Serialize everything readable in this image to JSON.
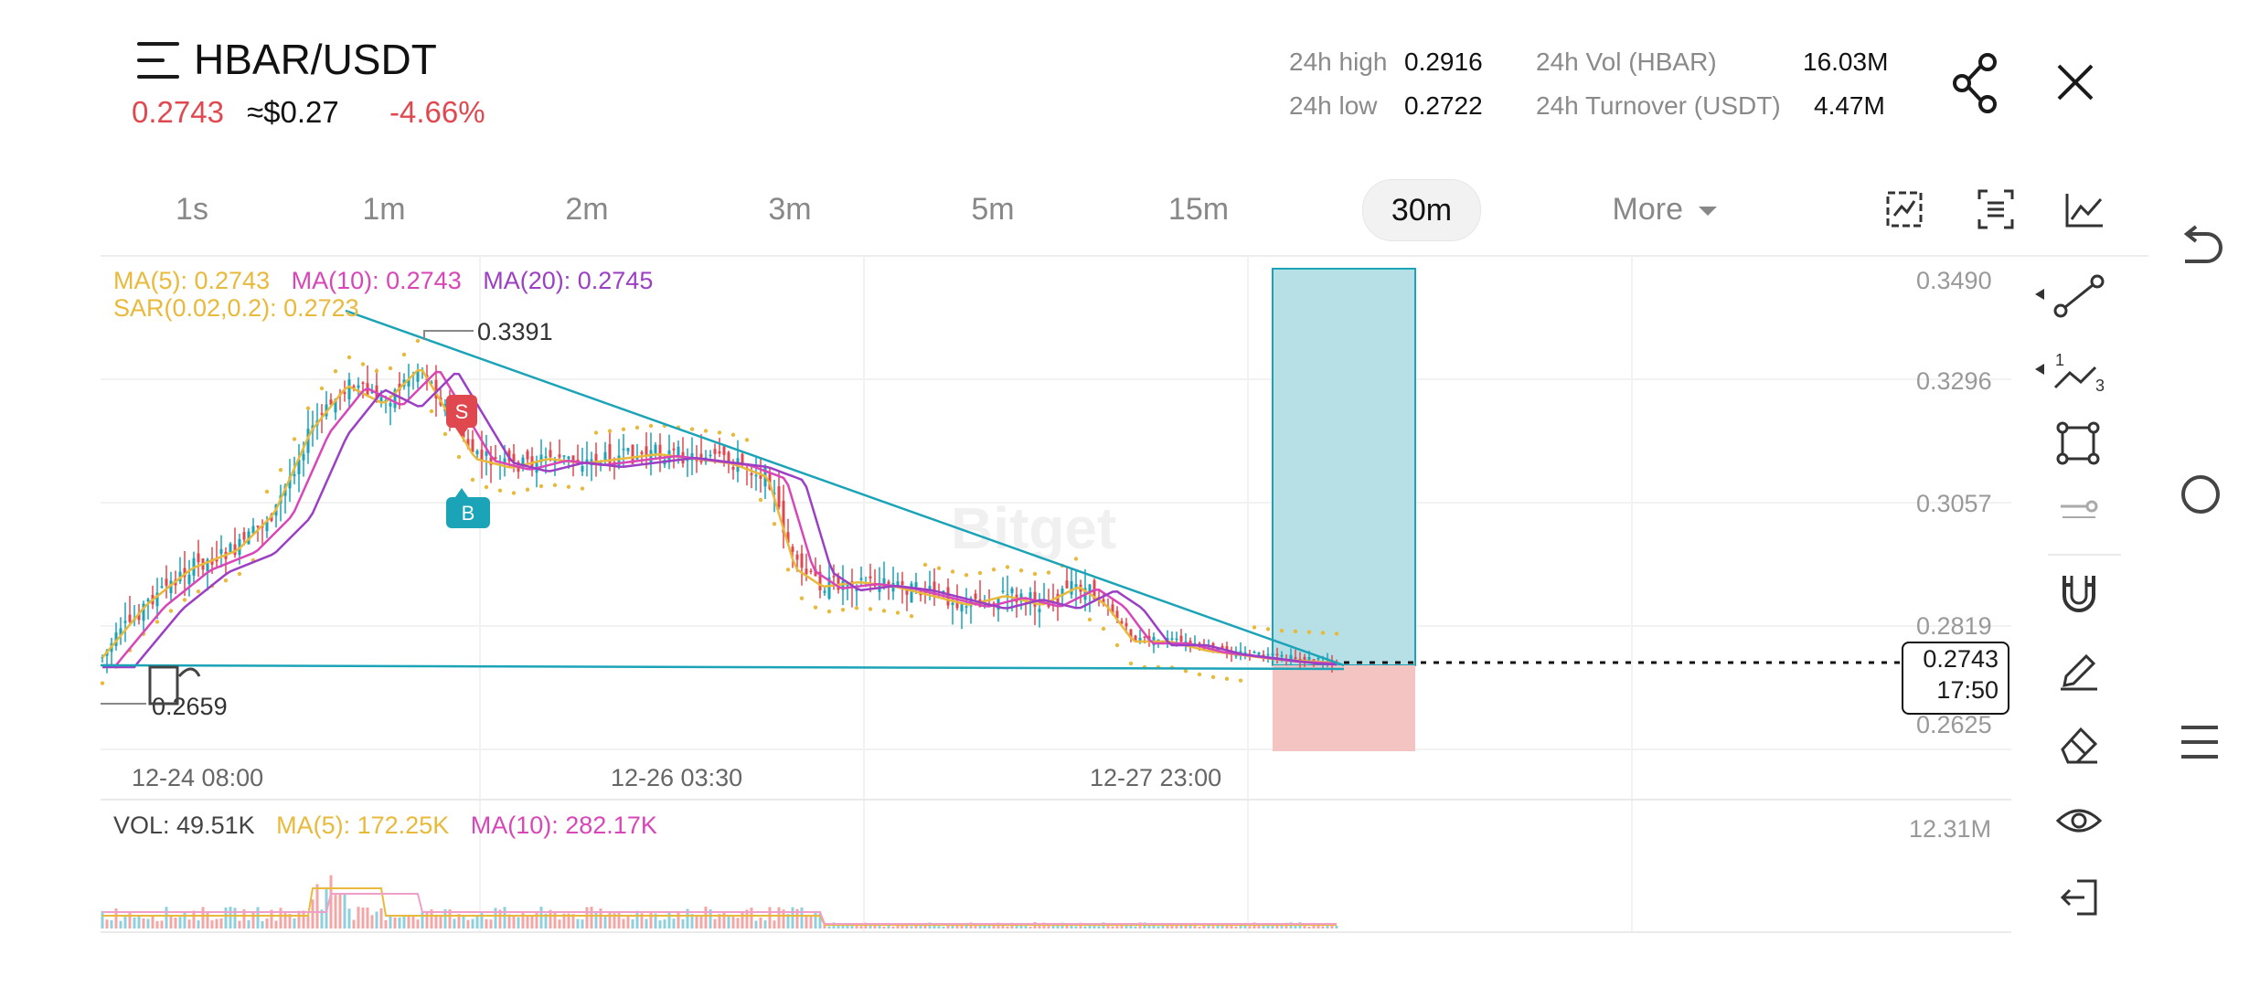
{
  "header": {
    "pair": "HBAR/USDT",
    "last_price": "0.2743",
    "approx_usd": "≈$0.27",
    "change_pct": "-4.66%"
  },
  "stats": {
    "high_label": "24h high",
    "high_value": "0.2916",
    "low_label": "24h low",
    "low_value": "0.2722",
    "vol_label": "24h Vol (HBAR)",
    "vol_value": "16.03M",
    "turnover_label": "24h Turnover (USDT)",
    "turnover_value": "4.47M"
  },
  "tabs": [
    {
      "label": "1s"
    },
    {
      "label": "1m"
    },
    {
      "label": "2m"
    },
    {
      "label": "3m"
    },
    {
      "label": "5m"
    },
    {
      "label": "15m"
    },
    {
      "label": "30m"
    },
    {
      "label": "More"
    }
  ],
  "active_tab": "30m",
  "indicators": {
    "ma5": "MA(5): 0.2743",
    "ma10": "MA(10): 0.2743",
    "ma20": "MA(20): 0.2745",
    "sar": "SAR(0.02,0.2): 0.2723"
  },
  "annotations": {
    "peak_label": "0.3391",
    "low_label": "0.2659",
    "sell_marker": "S",
    "buy_marker": "B",
    "watermark": "Bitget"
  },
  "price_axis": [
    "0.3490",
    "0.3296",
    "0.3057",
    "0.2819",
    "0.2625"
  ],
  "date_axis": [
    "12-24 08:00",
    "12-26 03:30",
    "12-27 23:00"
  ],
  "current_price_box": {
    "price": "0.2743",
    "countdown": "17:50"
  },
  "volume": {
    "vol": "VOL: 49.51K",
    "ma5": "MA(5): 172.25K",
    "ma10": "MA(10): 282.17K",
    "axis_max": "12.31M"
  },
  "colors": {
    "up": "#1ba3b8",
    "down": "#e0484f",
    "ma5": "#e8b93a",
    "ma10": "#d946b8",
    "ma20": "#9b3fc4",
    "long_zone": "#b6dfe6",
    "short_zone": "#f3c4c1"
  },
  "right_tools": [
    "line-tool-icon",
    "fib-tool-icon",
    "rectangle-tool-icon",
    "brush-size-icon",
    "magnet-icon",
    "pencil-icon",
    "eraser-icon",
    "eye-icon",
    "exit-icon"
  ],
  "system_nav": [
    "back-icon",
    "home-icon",
    "recents-icon"
  ]
}
